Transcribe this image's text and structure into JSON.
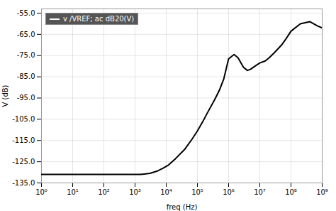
{
  "chart_data": {
    "type": "line",
    "xlabel": "freq (Hz)",
    "ylabel": "V (dB)",
    "log": "x",
    "grid": true,
    "legend": "upper left",
    "xlim": [
      1,
      1000000000
    ],
    "ylim": [
      -135,
      -53
    ],
    "xticks": [
      {
        "value": 1,
        "label": "10⁰"
      },
      {
        "value": 10,
        "label": "10¹"
      },
      {
        "value": 100,
        "label": "10²"
      },
      {
        "value": 1000,
        "label": "10³"
      },
      {
        "value": 10000,
        "label": "10⁴"
      },
      {
        "value": 100000,
        "label": "10⁵"
      },
      {
        "value": 1000000,
        "label": "10⁶"
      },
      {
        "value": 10000000,
        "label": "10⁷"
      },
      {
        "value": 100000000,
        "label": "10⁸"
      },
      {
        "value": 1000000000,
        "label": "10⁹"
      }
    ],
    "yticks": [
      {
        "value": -135,
        "label": "-135.0"
      },
      {
        "value": -125,
        "label": "-125.0"
      },
      {
        "value": -115,
        "label": "-115.0"
      },
      {
        "value": -105,
        "label": "-105.0"
      },
      {
        "value": -95,
        "label": "-95.0"
      },
      {
        "value": -85,
        "label": "-85.0"
      },
      {
        "value": -75,
        "label": "-75.0"
      },
      {
        "value": -65,
        "label": "-65.0"
      },
      {
        "value": -55,
        "label": "-55.0"
      }
    ],
    "x": [
      1,
      2,
      5,
      10,
      20,
      50,
      100,
      200,
      500,
      800,
      1000,
      1500,
      2000,
      3000,
      5000,
      8000,
      12000,
      20000,
      40000,
      70000,
      100000,
      150000,
      200000,
      350000,
      500000,
      700000,
      1000000,
      1500000,
      2000000,
      3000000,
      4000000,
      5000000,
      7000000,
      10000000,
      15000000,
      20000000,
      30000000,
      50000000,
      70000000,
      100000000,
      200000000,
      400000000,
      700000000,
      1000000000
    ],
    "series": [
      {
        "name": "v /VREF; ac dB20(V)",
        "color": "#000000",
        "values": [
          -131.0,
          -131.0,
          -131.0,
          -131.0,
          -131.0,
          -131.0,
          -131.0,
          -131.0,
          -131.0,
          -131.0,
          -131.0,
          -131.0,
          -130.8,
          -130.5,
          -129.5,
          -128.0,
          -126.5,
          -123.5,
          -119.0,
          -114.0,
          -110.5,
          -106.0,
          -102.5,
          -96.0,
          -91.5,
          -86.0,
          -76.5,
          -74.5,
          -76.0,
          -80.5,
          -82.0,
          -81.5,
          -80.0,
          -78.5,
          -77.5,
          -76.0,
          -73.5,
          -70.0,
          -67.0,
          -63.5,
          -60.0,
          -59.0,
          -61.0,
          -62.0
        ]
      }
    ]
  }
}
